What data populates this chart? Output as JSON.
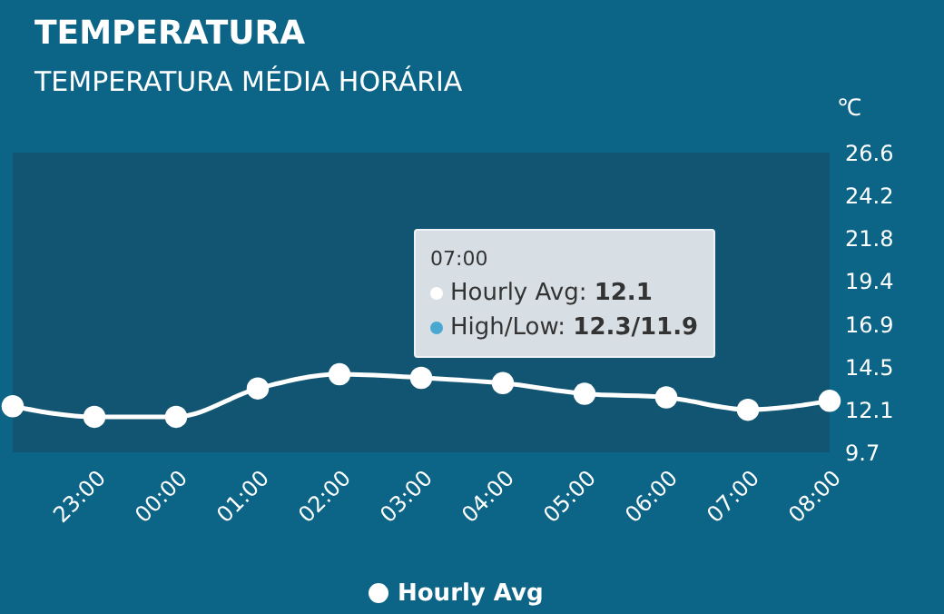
{
  "chart_data": {
    "type": "line",
    "title": "TEMPERATURA",
    "subtitle": "TEMPERATURA MÉDIA HORÁRIA",
    "ylabel": "℃",
    "categories": [
      null,
      "23:00",
      "00:00",
      "01:00",
      "02:00",
      "03:00",
      "04:00",
      "05:00",
      "06:00",
      "07:00",
      "08:00"
    ],
    "series": [
      {
        "name": "Hourly Avg",
        "color": "#ffffff",
        "values": [
          12.3,
          11.7,
          11.7,
          13.3,
          14.1,
          13.9,
          13.6,
          13.0,
          12.8,
          12.1,
          12.6
        ]
      }
    ],
    "ylim": [
      9.7,
      26.6
    ],
    "yticks": [
      9.7,
      12.1,
      14.5,
      16.9,
      19.4,
      21.8,
      24.2,
      26.6
    ],
    "annotations": [
      "07:00",
      "Hourly Avg: 12.1",
      "High/Low: 12.3/11.9"
    ],
    "legend": "bottom",
    "marker": "circle",
    "line_style": "solid"
  }
}
